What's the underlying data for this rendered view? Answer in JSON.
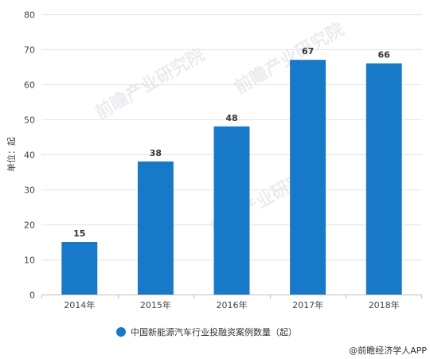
{
  "chart_data": {
    "type": "bar",
    "categories": [
      "2014年",
      "2015年",
      "2016年",
      "2017年",
      "2018年"
    ],
    "values": [
      15,
      38,
      48,
      67,
      66
    ],
    "data_labels": [
      "15",
      "38",
      "48",
      "67",
      "66"
    ],
    "ylabel": "单位：起",
    "ylim": [
      0,
      80
    ],
    "yticks": [
      0,
      10,
      20,
      30,
      40,
      50,
      60,
      70,
      80
    ],
    "grid": true,
    "bar_color": "#1779c7",
    "legend": {
      "label": "中国新能源汽车行业投融资案例数量（起）",
      "placement": "bottom"
    }
  },
  "watermark": "前瞻产业研究院",
  "credit": "@前瞻经济学人APP"
}
